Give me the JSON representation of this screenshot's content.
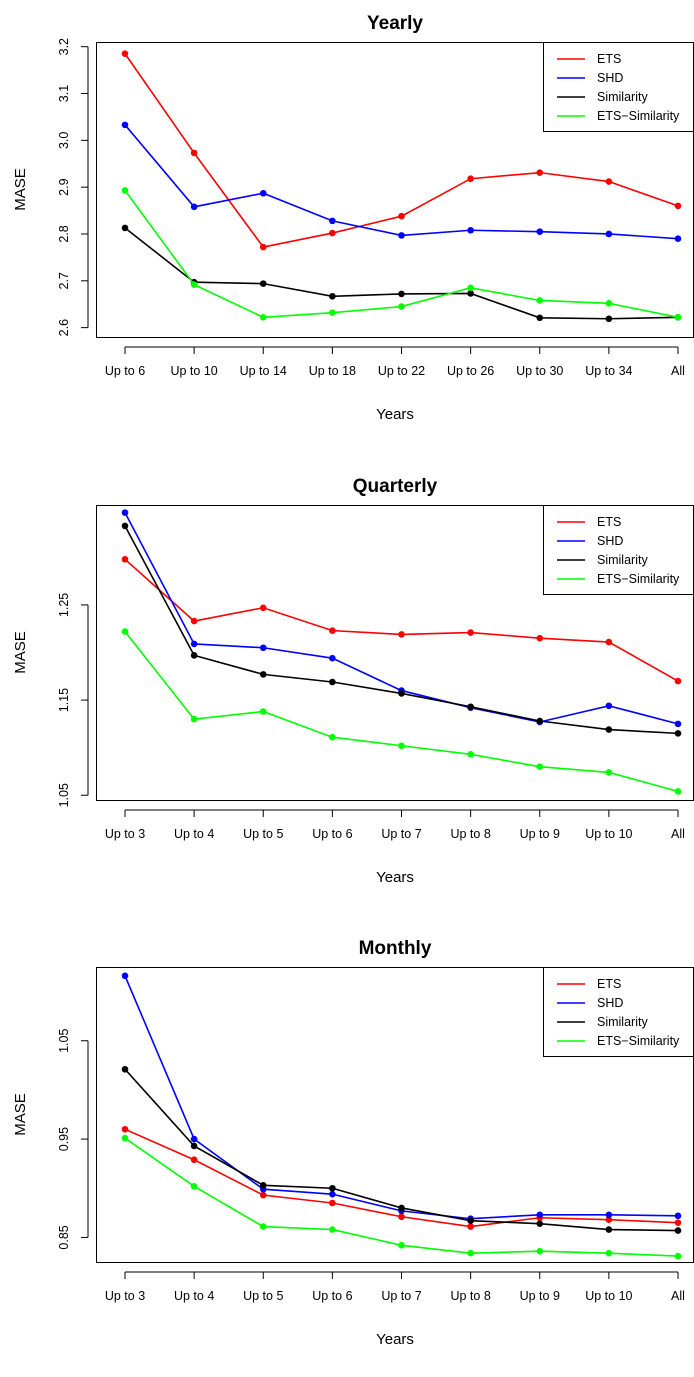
{
  "chart_data": [
    {
      "type": "line",
      "title": "Yearly",
      "xlabel": "Years",
      "ylabel": "MASE",
      "categories": [
        "Up to 6",
        "Up to 10",
        "Up to 14",
        "Up to 18",
        "Up to 22",
        "Up to 26",
        "Up to 30",
        "Up to 34",
        "All"
      ],
      "ylim": [
        2.58,
        3.21
      ],
      "yticks": [
        2.6,
        2.7,
        2.8,
        2.9,
        3.0,
        3.1,
        3.2
      ],
      "ytick_labels": [
        "2.6",
        "2.7",
        "2.8",
        "2.9",
        "3.0",
        "3.1",
        "3.2"
      ],
      "grid": false,
      "legend_position": "top-right",
      "series": [
        {
          "name": "ETS",
          "color": "#ff0000",
          "values": [
            3.185,
            2.973,
            2.772,
            2.802,
            2.838,
            2.918,
            2.931,
            2.912,
            2.86
          ]
        },
        {
          "name": "SHD",
          "color": "#0000ff",
          "values": [
            3.033,
            2.858,
            2.887,
            2.828,
            2.797,
            2.808,
            2.805,
            2.8,
            2.79
          ]
        },
        {
          "name": "Similarity",
          "color": "#000000",
          "values": [
            2.813,
            2.697,
            2.694,
            2.667,
            2.672,
            2.673,
            2.621,
            2.619,
            2.622
          ]
        },
        {
          "name": "ETS−Similarity",
          "color": "#00ff00",
          "values": [
            2.893,
            2.692,
            2.622,
            2.632,
            2.645,
            2.685,
            2.658,
            2.652,
            2.622
          ]
        }
      ]
    },
    {
      "type": "line",
      "title": "Quarterly",
      "xlabel": "Years",
      "ylabel": "MASE",
      "categories": [
        "Up to 3",
        "Up to 4",
        "Up to 5",
        "Up to 6",
        "Up to 7",
        "Up to 8",
        "Up to 9",
        "Up to 10",
        "All"
      ],
      "ylim": [
        1.045,
        1.355
      ],
      "yticks": [
        1.05,
        1.15,
        1.25
      ],
      "ytick_labels": [
        "1.05",
        "1.15",
        "1.25"
      ],
      "grid": false,
      "legend_position": "top-right",
      "series": [
        {
          "name": "ETS",
          "color": "#ff0000",
          "values": [
            1.298,
            1.233,
            1.247,
            1.223,
            1.219,
            1.221,
            1.215,
            1.211,
            1.17
          ]
        },
        {
          "name": "SHD",
          "color": "#0000ff",
          "values": [
            1.347,
            1.209,
            1.205,
            1.194,
            1.16,
            1.142,
            1.127,
            1.144,
            1.125
          ]
        },
        {
          "name": "Similarity",
          "color": "#000000",
          "values": [
            1.333,
            1.197,
            1.177,
            1.169,
            1.157,
            1.143,
            1.128,
            1.119,
            1.115
          ]
        },
        {
          "name": "ETS−Similarity",
          "color": "#00ff00",
          "values": [
            1.222,
            1.13,
            1.138,
            1.111,
            1.102,
            1.093,
            1.08,
            1.074,
            1.054
          ]
        }
      ]
    },
    {
      "type": "line",
      "title": "Monthly",
      "xlabel": "Years",
      "ylabel": "MASE",
      "categories": [
        "Up to 3",
        "Up to 4",
        "Up to 5",
        "Up to 6",
        "Up to 7",
        "Up to 8",
        "Up to 9",
        "Up to 10",
        "All"
      ],
      "ylim": [
        0.825,
        1.125
      ],
      "yticks": [
        0.85,
        0.95,
        1.05
      ],
      "ytick_labels": [
        "0.85",
        "0.95",
        "1.05"
      ],
      "grid": false,
      "legend_position": "top-right",
      "series": [
        {
          "name": "ETS",
          "color": "#ff0000",
          "values": [
            0.96,
            0.929,
            0.893,
            0.885,
            0.871,
            0.861,
            0.87,
            0.868,
            0.865
          ]
        },
        {
          "name": "SHD",
          "color": "#0000ff",
          "values": [
            1.116,
            0.95,
            0.899,
            0.894,
            0.877,
            0.869,
            0.873,
            0.873,
            0.872
          ]
        },
        {
          "name": "Similarity",
          "color": "#000000",
          "values": [
            1.021,
            0.943,
            0.903,
            0.9,
            0.88,
            0.867,
            0.864,
            0.858,
            0.857
          ]
        },
        {
          "name": "ETS−Similarity",
          "color": "#00ff00",
          "values": [
            0.951,
            0.902,
            0.861,
            0.858,
            0.842,
            0.834,
            0.836,
            0.834,
            0.831
          ]
        }
      ]
    }
  ]
}
